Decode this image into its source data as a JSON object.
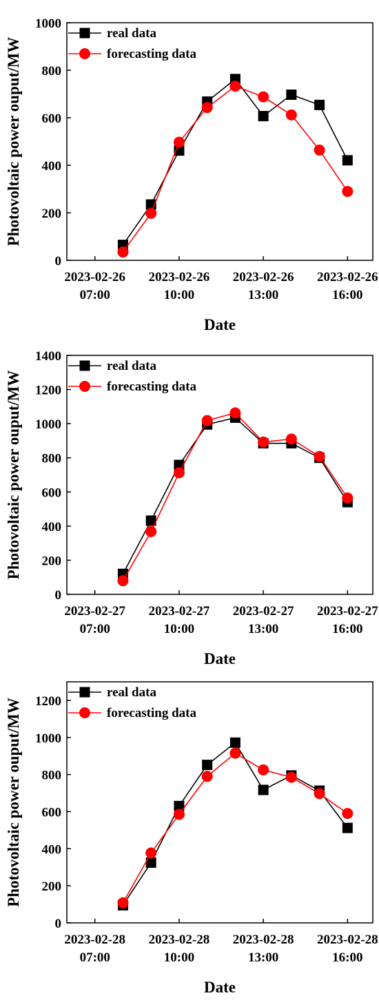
{
  "colors": {
    "real": "#000000",
    "forecast": "#ff0000",
    "axis": "#000000"
  },
  "chart_data": [
    {
      "type": "line",
      "title": "",
      "xlabel": "Date",
      "ylabel": "Photovoltaic power ouput/MW",
      "x": [
        8,
        9,
        10,
        11,
        12,
        13,
        14,
        15,
        16
      ],
      "xlim": [
        6.0,
        16.9
      ],
      "ylim": [
        0,
        1000
      ],
      "yticks": [
        0,
        200,
        400,
        600,
        800,
        1000
      ],
      "xticks": [
        {
          "x": 7,
          "date": "2023-02-26",
          "time": "07:00"
        },
        {
          "x": 10,
          "date": "2023-02-26",
          "time": "10:00"
        },
        {
          "x": 13,
          "date": "2023-02-26",
          "time": "13:00"
        },
        {
          "x": 16,
          "date": "2023-02-26",
          "time": "16:00"
        }
      ],
      "legend_position": "top-left",
      "grid": false,
      "series": [
        {
          "name": "real data",
          "marker": "square",
          "color": "#000000",
          "values": [
            65,
            235,
            462,
            668,
            763,
            607,
            697,
            654,
            421
          ]
        },
        {
          "name": "forecasting data",
          "marker": "circle",
          "color": "#ff0000",
          "values": [
            35,
            198,
            497,
            643,
            733,
            688,
            612,
            464,
            290
          ]
        }
      ]
    },
    {
      "type": "line",
      "title": "",
      "xlabel": "Date",
      "ylabel": "Photovoltaic power ouput/MW",
      "x": [
        8,
        9,
        10,
        11,
        12,
        13,
        14,
        15,
        16
      ],
      "xlim": [
        6.0,
        16.9
      ],
      "ylim": [
        0,
        1400
      ],
      "yticks": [
        0,
        200,
        400,
        600,
        800,
        1000,
        1200,
        1400
      ],
      "xticks": [
        {
          "x": 7,
          "date": "2023-02-27",
          "time": "07:00"
        },
        {
          "x": 10,
          "date": "2023-02-27",
          "time": "10:00"
        },
        {
          "x": 13,
          "date": "2023-02-27",
          "time": "13:00"
        },
        {
          "x": 16,
          "date": "2023-02-27",
          "time": "16:00"
        }
      ],
      "legend_position": "top-left",
      "grid": false,
      "series": [
        {
          "name": "real data",
          "marker": "square",
          "color": "#000000",
          "values": [
            120,
            432,
            758,
            995,
            1035,
            885,
            885,
            800,
            540
          ]
        },
        {
          "name": "forecasting data",
          "marker": "circle",
          "color": "#ff0000",
          "values": [
            80,
            368,
            712,
            1018,
            1063,
            892,
            910,
            808,
            565
          ]
        }
      ]
    },
    {
      "type": "line",
      "title": "",
      "xlabel": "Date",
      "ylabel": "Photovoltaic power ouput/MW",
      "x": [
        8,
        9,
        10,
        11,
        12,
        13,
        14,
        15,
        16
      ],
      "xlim": [
        6.0,
        16.9
      ],
      "ylim": [
        0,
        1300
      ],
      "yticks": [
        0,
        200,
        400,
        600,
        800,
        1000,
        1200
      ],
      "xticks": [
        {
          "x": 7,
          "date": "2023-02-28",
          "time": "07:00"
        },
        {
          "x": 10,
          "date": "2023-02-28",
          "time": "10:00"
        },
        {
          "x": 13,
          "date": "2023-02-28",
          "time": "13:00"
        },
        {
          "x": 16,
          "date": "2023-02-28",
          "time": "16:00"
        }
      ],
      "legend_position": "top-left",
      "grid": false,
      "series": [
        {
          "name": "real data",
          "marker": "square",
          "color": "#000000",
          "values": [
            95,
            325,
            630,
            852,
            972,
            717,
            795,
            713,
            512
          ]
        },
        {
          "name": "forecasting data",
          "marker": "circle",
          "color": "#ff0000",
          "values": [
            108,
            377,
            585,
            790,
            915,
            825,
            785,
            697,
            590
          ]
        }
      ]
    }
  ]
}
